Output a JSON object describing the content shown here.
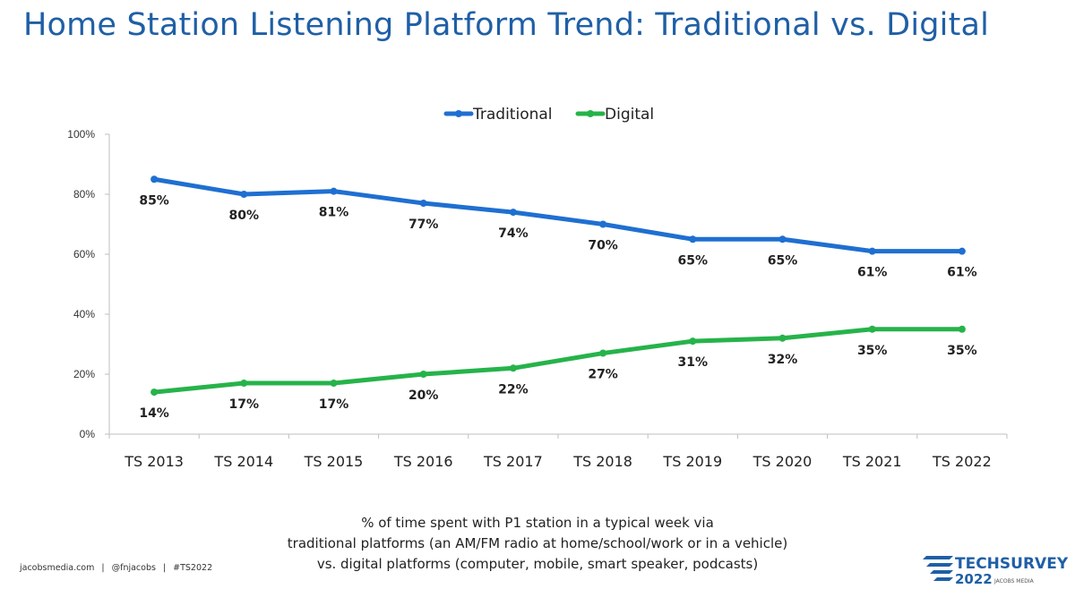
{
  "title": "Home Station Listening Platform Trend: Traditional vs. Digital",
  "chart_data": {
    "type": "line",
    "x": [
      "TS 2013",
      "TS 2014",
      "TS 2015",
      "TS 2016",
      "TS 2017",
      "TS 2018",
      "TS 2019",
      "TS 2020",
      "TS 2021",
      "TS 2022"
    ],
    "series": [
      {
        "name": "Traditional",
        "color": "#1f6fd1",
        "values": [
          85,
          80,
          81,
          77,
          74,
          70,
          65,
          65,
          61,
          61
        ],
        "labels": [
          "85%",
          "80%",
          "81%",
          "77%",
          "74%",
          "70%",
          "65%",
          "65%",
          "61%",
          "61%"
        ]
      },
      {
        "name": "Digital",
        "color": "#26b34a",
        "values": [
          14,
          17,
          17,
          20,
          22,
          27,
          31,
          32,
          35,
          35
        ],
        "labels": [
          "14%",
          "17%",
          "17%",
          "20%",
          "22%",
          "27%",
          "31%",
          "32%",
          "35%",
          "35%"
        ]
      }
    ],
    "ylim": [
      0,
      100
    ],
    "yticks": [
      "0%",
      "20%",
      "40%",
      "60%",
      "80%",
      "100%"
    ],
    "legend": "top-center",
    "grid": false
  },
  "note": {
    "line1": "% of time spent with P1 station in a typical week via",
    "line2": "traditional platforms (an AM/FM radio at home/school/work or in a vehicle)",
    "line3": "vs. digital platforms (computer, mobile, smart speaker, podcasts)"
  },
  "credits": {
    "site": "jacobsmedia.com",
    "handle": "@fnjacobs",
    "tag": "#TS2022"
  },
  "logo": {
    "brand": "TECHSURVEY",
    "year": "2022",
    "company": "JACOBS MEDIA",
    "color": "#1f5fa6"
  }
}
